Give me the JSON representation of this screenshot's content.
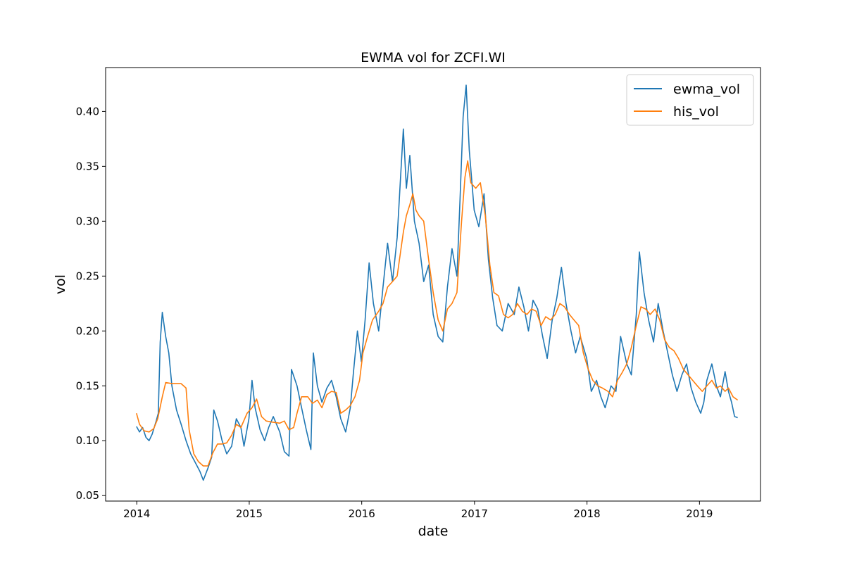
{
  "chart_data": {
    "type": "line",
    "title": "EWMA vol for ZCFI.WI",
    "xlabel": "date",
    "ylabel": "vol",
    "xlim": [
      "2013-09-22",
      "2019-07-18"
    ],
    "ylim": [
      0.045,
      0.44
    ],
    "grid": false,
    "legend_position": "top-right",
    "x_ticks": [
      "2014",
      "2015",
      "2016",
      "2017",
      "2018",
      "2019"
    ],
    "y_ticks": [
      "0.05",
      "0.10",
      "0.15",
      "0.20",
      "0.25",
      "0.30",
      "0.35",
      "0.40"
    ],
    "series": [
      {
        "name": "ewma_vol",
        "color": "#1f77b4",
        "points": [
          [
            "2013-12-31",
            0.113
          ],
          [
            "2014-01-10",
            0.108
          ],
          [
            "2014-01-20",
            0.112
          ],
          [
            "2014-01-31",
            0.103
          ],
          [
            "2014-02-10",
            0.1
          ],
          [
            "2014-02-20",
            0.106
          ],
          [
            "2014-03-05",
            0.118
          ],
          [
            "2014-03-12",
            0.125
          ],
          [
            "2014-03-18",
            0.19
          ],
          [
            "2014-03-25",
            0.217
          ],
          [
            "2014-04-05",
            0.195
          ],
          [
            "2014-04-15",
            0.18
          ],
          [
            "2014-04-25",
            0.15
          ],
          [
            "2014-05-10",
            0.128
          ],
          [
            "2014-05-25",
            0.115
          ],
          [
            "2014-06-10",
            0.1
          ],
          [
            "2014-06-25",
            0.088
          ],
          [
            "2014-07-10",
            0.08
          ],
          [
            "2014-07-25",
            0.072
          ],
          [
            "2014-08-05",
            0.064
          ],
          [
            "2014-08-20",
            0.075
          ],
          [
            "2014-09-01",
            0.085
          ],
          [
            "2014-09-08",
            0.128
          ],
          [
            "2014-09-20",
            0.118
          ],
          [
            "2014-10-05",
            0.1
          ],
          [
            "2014-10-20",
            0.088
          ],
          [
            "2014-11-05",
            0.095
          ],
          [
            "2014-11-20",
            0.12
          ],
          [
            "2014-12-05",
            0.112
          ],
          [
            "2014-12-15",
            0.095
          ],
          [
            "2014-12-31",
            0.12
          ],
          [
            "2015-01-10",
            0.155
          ],
          [
            "2015-01-20",
            0.13
          ],
          [
            "2015-02-05",
            0.11
          ],
          [
            "2015-02-20",
            0.1
          ],
          [
            "2015-03-05",
            0.112
          ],
          [
            "2015-03-20",
            0.122
          ],
          [
            "2015-04-10",
            0.108
          ],
          [
            "2015-04-25",
            0.09
          ],
          [
            "2015-05-10",
            0.086
          ],
          [
            "2015-05-18",
            0.165
          ],
          [
            "2015-06-05",
            0.15
          ],
          [
            "2015-06-20",
            0.13
          ],
          [
            "2015-07-05",
            0.11
          ],
          [
            "2015-07-20",
            0.092
          ],
          [
            "2015-07-28",
            0.18
          ],
          [
            "2015-08-10",
            0.15
          ],
          [
            "2015-08-25",
            0.135
          ],
          [
            "2015-09-10",
            0.148
          ],
          [
            "2015-09-25",
            0.155
          ],
          [
            "2015-10-10",
            0.14
          ],
          [
            "2015-10-25",
            0.12
          ],
          [
            "2015-11-10",
            0.108
          ],
          [
            "2015-11-25",
            0.13
          ],
          [
            "2015-12-05",
            0.162
          ],
          [
            "2015-12-18",
            0.2
          ],
          [
            "2015-12-31",
            0.172
          ],
          [
            "2016-01-12",
            0.21
          ],
          [
            "2016-01-25",
            0.262
          ],
          [
            "2016-02-08",
            0.225
          ],
          [
            "2016-02-25",
            0.2
          ],
          [
            "2016-03-10",
            0.24
          ],
          [
            "2016-03-25",
            0.28
          ],
          [
            "2016-04-10",
            0.245
          ],
          [
            "2016-04-25",
            0.285
          ],
          [
            "2016-05-05",
            0.335
          ],
          [
            "2016-05-15",
            0.384
          ],
          [
            "2016-05-25",
            0.33
          ],
          [
            "2016-06-05",
            0.36
          ],
          [
            "2016-06-20",
            0.3
          ],
          [
            "2016-07-05",
            0.28
          ],
          [
            "2016-07-20",
            0.245
          ],
          [
            "2016-08-05",
            0.26
          ],
          [
            "2016-08-20",
            0.215
          ],
          [
            "2016-09-05",
            0.195
          ],
          [
            "2016-09-20",
            0.19
          ],
          [
            "2016-10-05",
            0.24
          ],
          [
            "2016-10-20",
            0.275
          ],
          [
            "2016-11-05",
            0.25
          ],
          [
            "2016-11-15",
            0.32
          ],
          [
            "2016-11-25",
            0.395
          ],
          [
            "2016-12-05",
            0.424
          ],
          [
            "2016-12-15",
            0.365
          ],
          [
            "2016-12-31",
            0.31
          ],
          [
            "2017-01-15",
            0.295
          ],
          [
            "2017-02-01",
            0.325
          ],
          [
            "2017-02-15",
            0.265
          ],
          [
            "2017-03-01",
            0.23
          ],
          [
            "2017-03-15",
            0.205
          ],
          [
            "2017-04-01",
            0.2
          ],
          [
            "2017-04-20",
            0.225
          ],
          [
            "2017-05-10",
            0.215
          ],
          [
            "2017-05-25",
            0.24
          ],
          [
            "2017-06-10",
            0.222
          ],
          [
            "2017-06-25",
            0.2
          ],
          [
            "2017-07-10",
            0.228
          ],
          [
            "2017-07-25",
            0.22
          ],
          [
            "2017-08-10",
            0.195
          ],
          [
            "2017-08-25",
            0.175
          ],
          [
            "2017-09-10",
            0.21
          ],
          [
            "2017-09-25",
            0.23
          ],
          [
            "2017-10-10",
            0.258
          ],
          [
            "2017-10-25",
            0.225
          ],
          [
            "2017-11-10",
            0.2
          ],
          [
            "2017-11-25",
            0.18
          ],
          [
            "2017-12-10",
            0.195
          ],
          [
            "2017-12-31",
            0.175
          ],
          [
            "2018-01-15",
            0.145
          ],
          [
            "2018-02-01",
            0.155
          ],
          [
            "2018-02-15",
            0.14
          ],
          [
            "2018-03-01",
            0.13
          ],
          [
            "2018-03-20",
            0.15
          ],
          [
            "2018-04-05",
            0.145
          ],
          [
            "2018-04-20",
            0.195
          ],
          [
            "2018-05-10",
            0.17
          ],
          [
            "2018-05-25",
            0.16
          ],
          [
            "2018-06-10",
            0.215
          ],
          [
            "2018-06-20",
            0.272
          ],
          [
            "2018-07-05",
            0.235
          ],
          [
            "2018-07-20",
            0.21
          ],
          [
            "2018-08-05",
            0.19
          ],
          [
            "2018-08-20",
            0.225
          ],
          [
            "2018-09-05",
            0.2
          ],
          [
            "2018-09-20",
            0.18
          ],
          [
            "2018-10-05",
            0.16
          ],
          [
            "2018-10-20",
            0.145
          ],
          [
            "2018-11-05",
            0.16
          ],
          [
            "2018-11-20",
            0.17
          ],
          [
            "2018-12-05",
            0.148
          ],
          [
            "2018-12-20",
            0.135
          ],
          [
            "2019-01-05",
            0.125
          ],
          [
            "2019-01-15",
            0.135
          ],
          [
            "2019-01-25",
            0.155
          ],
          [
            "2019-02-10",
            0.17
          ],
          [
            "2019-02-25",
            0.15
          ],
          [
            "2019-03-10",
            0.14
          ],
          [
            "2019-03-25",
            0.163
          ],
          [
            "2019-04-05",
            0.145
          ],
          [
            "2019-04-15",
            0.135
          ],
          [
            "2019-04-25",
            0.122
          ],
          [
            "2019-05-05",
            0.121
          ]
        ]
      },
      {
        "name": "his_vol",
        "color": "#ff7f0e",
        "points": [
          [
            "2013-12-31",
            0.125
          ],
          [
            "2014-01-10",
            0.115
          ],
          [
            "2014-01-25",
            0.109
          ],
          [
            "2014-02-10",
            0.108
          ],
          [
            "2014-02-25",
            0.111
          ],
          [
            "2014-03-10",
            0.12
          ],
          [
            "2014-03-25",
            0.14
          ],
          [
            "2014-04-05",
            0.153
          ],
          [
            "2014-04-25",
            0.152
          ],
          [
            "2014-05-25",
            0.152
          ],
          [
            "2014-06-10",
            0.148
          ],
          [
            "2014-06-20",
            0.11
          ],
          [
            "2014-07-05",
            0.088
          ],
          [
            "2014-07-20",
            0.081
          ],
          [
            "2014-08-05",
            0.077
          ],
          [
            "2014-08-20",
            0.077
          ],
          [
            "2014-09-05",
            0.089
          ],
          [
            "2014-09-20",
            0.097
          ],
          [
            "2014-10-05",
            0.097
          ],
          [
            "2014-10-20",
            0.098
          ],
          [
            "2014-11-05",
            0.105
          ],
          [
            "2014-11-20",
            0.115
          ],
          [
            "2014-12-05",
            0.112
          ],
          [
            "2014-12-25",
            0.125
          ],
          [
            "2015-01-10",
            0.13
          ],
          [
            "2015-01-25",
            0.138
          ],
          [
            "2015-02-10",
            0.122
          ],
          [
            "2015-02-25",
            0.118
          ],
          [
            "2015-03-15",
            0.117
          ],
          [
            "2015-04-10",
            0.116
          ],
          [
            "2015-04-25",
            0.118
          ],
          [
            "2015-05-10",
            0.11
          ],
          [
            "2015-05-25",
            0.112
          ],
          [
            "2015-06-05",
            0.125
          ],
          [
            "2015-06-20",
            0.14
          ],
          [
            "2015-07-10",
            0.14
          ],
          [
            "2015-07-25",
            0.134
          ],
          [
            "2015-08-10",
            0.137
          ],
          [
            "2015-08-25",
            0.13
          ],
          [
            "2015-09-10",
            0.142
          ],
          [
            "2015-09-25",
            0.145
          ],
          [
            "2015-10-10",
            0.144
          ],
          [
            "2015-10-25",
            0.125
          ],
          [
            "2015-11-10",
            0.128
          ],
          [
            "2015-11-25",
            0.132
          ],
          [
            "2015-12-10",
            0.14
          ],
          [
            "2015-12-25",
            0.155
          ],
          [
            "2016-01-05",
            0.18
          ],
          [
            "2016-01-20",
            0.195
          ],
          [
            "2016-02-05",
            0.21
          ],
          [
            "2016-02-25",
            0.218
          ],
          [
            "2016-03-10",
            0.225
          ],
          [
            "2016-03-25",
            0.24
          ],
          [
            "2016-04-10",
            0.245
          ],
          [
            "2016-04-25",
            0.25
          ],
          [
            "2016-05-05",
            0.27
          ],
          [
            "2016-05-15",
            0.29
          ],
          [
            "2016-05-25",
            0.305
          ],
          [
            "2016-06-05",
            0.315
          ],
          [
            "2016-06-15",
            0.325
          ],
          [
            "2016-06-25",
            0.31
          ],
          [
            "2016-07-05",
            0.305
          ],
          [
            "2016-07-20",
            0.3
          ],
          [
            "2016-08-05",
            0.265
          ],
          [
            "2016-08-20",
            0.235
          ],
          [
            "2016-09-05",
            0.21
          ],
          [
            "2016-09-20",
            0.2
          ],
          [
            "2016-10-05",
            0.22
          ],
          [
            "2016-10-20",
            0.225
          ],
          [
            "2016-11-05",
            0.235
          ],
          [
            "2016-11-20",
            0.3
          ],
          [
            "2016-12-01",
            0.34
          ],
          [
            "2016-12-10",
            0.355
          ],
          [
            "2016-12-20",
            0.335
          ],
          [
            "2017-01-05",
            0.33
          ],
          [
            "2017-01-20",
            0.335
          ],
          [
            "2017-02-05",
            0.305
          ],
          [
            "2017-02-20",
            0.26
          ],
          [
            "2017-03-05",
            0.235
          ],
          [
            "2017-03-20",
            0.232
          ],
          [
            "2017-04-05",
            0.215
          ],
          [
            "2017-04-20",
            0.212
          ],
          [
            "2017-05-05",
            0.215
          ],
          [
            "2017-05-20",
            0.225
          ],
          [
            "2017-06-05",
            0.218
          ],
          [
            "2017-06-20",
            0.215
          ],
          [
            "2017-07-05",
            0.22
          ],
          [
            "2017-07-20",
            0.218
          ],
          [
            "2017-08-05",
            0.205
          ],
          [
            "2017-08-20",
            0.213
          ],
          [
            "2017-09-05",
            0.21
          ],
          [
            "2017-09-20",
            0.215
          ],
          [
            "2017-10-05",
            0.225
          ],
          [
            "2017-10-20",
            0.222
          ],
          [
            "2017-11-05",
            0.215
          ],
          [
            "2017-11-20",
            0.21
          ],
          [
            "2017-12-05",
            0.205
          ],
          [
            "2017-12-20",
            0.18
          ],
          [
            "2018-01-05",
            0.165
          ],
          [
            "2018-01-20",
            0.155
          ],
          [
            "2018-02-05",
            0.15
          ],
          [
            "2018-02-20",
            0.148
          ],
          [
            "2018-03-10",
            0.145
          ],
          [
            "2018-03-25",
            0.14
          ],
          [
            "2018-04-10",
            0.155
          ],
          [
            "2018-04-25",
            0.162
          ],
          [
            "2018-05-10",
            0.17
          ],
          [
            "2018-05-25",
            0.185
          ],
          [
            "2018-06-10",
            0.205
          ],
          [
            "2018-06-25",
            0.222
          ],
          [
            "2018-07-10",
            0.22
          ],
          [
            "2018-07-25",
            0.215
          ],
          [
            "2018-08-10",
            0.22
          ],
          [
            "2018-08-25",
            0.21
          ],
          [
            "2018-09-10",
            0.192
          ],
          [
            "2018-09-25",
            0.185
          ],
          [
            "2018-10-10",
            0.182
          ],
          [
            "2018-10-25",
            0.175
          ],
          [
            "2018-11-10",
            0.165
          ],
          [
            "2018-11-25",
            0.16
          ],
          [
            "2018-12-10",
            0.155
          ],
          [
            "2018-12-25",
            0.15
          ],
          [
            "2019-01-10",
            0.145
          ],
          [
            "2019-01-25",
            0.15
          ],
          [
            "2019-02-10",
            0.155
          ],
          [
            "2019-02-25",
            0.148
          ],
          [
            "2019-03-10",
            0.15
          ],
          [
            "2019-03-25",
            0.145
          ],
          [
            "2019-04-05",
            0.148
          ],
          [
            "2019-04-20",
            0.14
          ],
          [
            "2019-05-05",
            0.137
          ]
        ]
      }
    ]
  }
}
